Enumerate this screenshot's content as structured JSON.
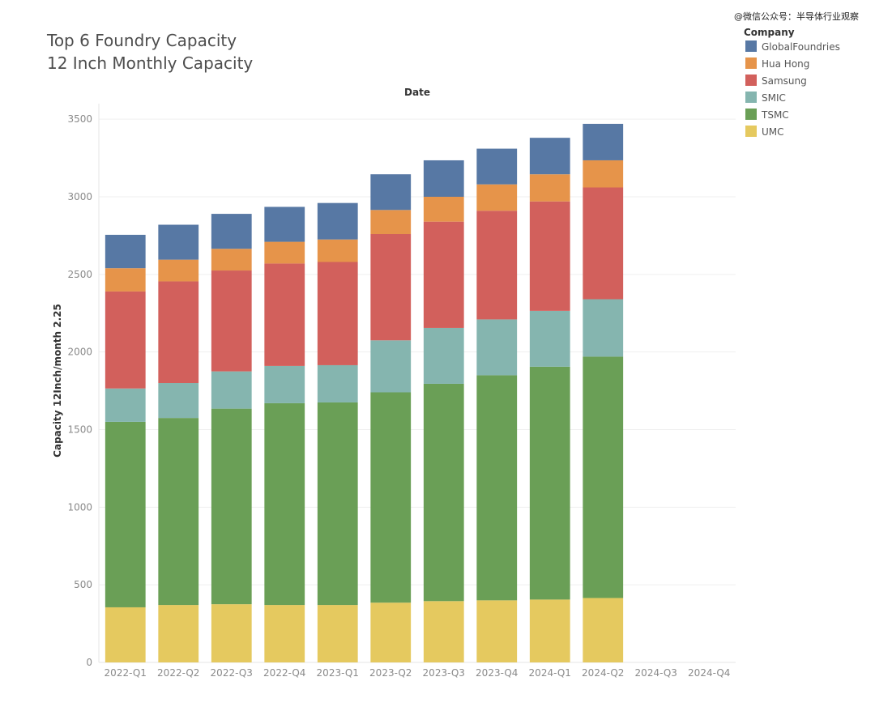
{
  "watermark": "@微信公众号：半导体行业观察",
  "chart_data": {
    "type": "bar",
    "stacked": true,
    "title": [
      "Top 6 Foundry Capacity",
      "12 Inch Monthly Capacity"
    ],
    "xlabel": "Date",
    "ylabel": "Capacity 12Inch/month 2.25",
    "ylim": [
      0,
      3600
    ],
    "yticks": [
      0,
      500,
      1000,
      1500,
      2000,
      2500,
      3000,
      3500
    ],
    "grid": true,
    "categories": [
      "2022-Q1",
      "2022-Q2",
      "2022-Q3",
      "2022-Q4",
      "2023-Q1",
      "2023-Q2",
      "2023-Q3",
      "2023-Q4",
      "2024-Q1",
      "2024-Q2",
      "2024-Q3",
      "2024-Q4"
    ],
    "legend": {
      "title": "Company",
      "position": "top-right"
    },
    "series": [
      {
        "name": "UMC",
        "color": "#E5C95F",
        "values": [
          355,
          370,
          375,
          370,
          370,
          385,
          395,
          400,
          405,
          415,
          null,
          null
        ]
      },
      {
        "name": "TSMC",
        "color": "#6A9F56",
        "values": [
          1195,
          1205,
          1260,
          1300,
          1305,
          1355,
          1400,
          1450,
          1500,
          1555,
          null,
          null
        ]
      },
      {
        "name": "SMIC",
        "color": "#85B5AF",
        "values": [
          215,
          225,
          240,
          240,
          240,
          335,
          360,
          360,
          360,
          370,
          null,
          null
        ]
      },
      {
        "name": "Samsung",
        "color": "#D2605C",
        "values": [
          625,
          655,
          650,
          660,
          665,
          685,
          685,
          700,
          705,
          720,
          null,
          null
        ]
      },
      {
        "name": "Hua Hong",
        "color": "#E6944A",
        "values": [
          150,
          140,
          140,
          140,
          145,
          155,
          160,
          170,
          175,
          175,
          null,
          null
        ]
      },
      {
        "name": "GlobalFoundries",
        "color": "#5778A4",
        "values": [
          215,
          225,
          225,
          225,
          235,
          230,
          235,
          230,
          235,
          235,
          null,
          null
        ]
      }
    ]
  }
}
